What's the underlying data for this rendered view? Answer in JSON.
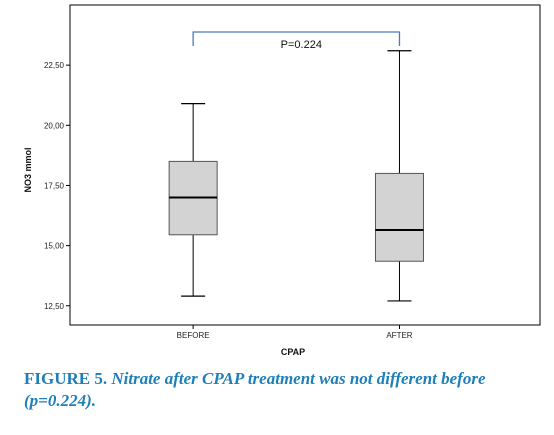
{
  "chart_data": {
    "type": "boxplot",
    "xlabel": "CPAP",
    "ylabel": "NO3 mmol",
    "ylim": [
      11.7,
      25.0
    ],
    "yticks": [
      "12,50",
      "15,00",
      "17,50",
      "20,00",
      "22,50"
    ],
    "ytick_values": [
      12.5,
      15.0,
      17.5,
      20.0,
      22.5
    ],
    "categories": [
      "BEFORE",
      "AFTER"
    ],
    "boxes": [
      {
        "category": "BEFORE",
        "min": 12.9,
        "q1": 15.45,
        "median": 17.0,
        "q3": 18.5,
        "max": 20.9
      },
      {
        "category": "AFTER",
        "min": 12.7,
        "q1": 14.35,
        "median": 15.65,
        "q3": 18.0,
        "max": 23.1
      }
    ],
    "annotation": "P=0.224",
    "colors": {
      "box_fill": "#d3d3d3",
      "bracket": "#4a78c2",
      "axis": "#000000"
    }
  },
  "caption": {
    "label": "FIGURE 5.",
    "text": "Nitrate after CPAP treatment was not different before (p=0.224)."
  }
}
